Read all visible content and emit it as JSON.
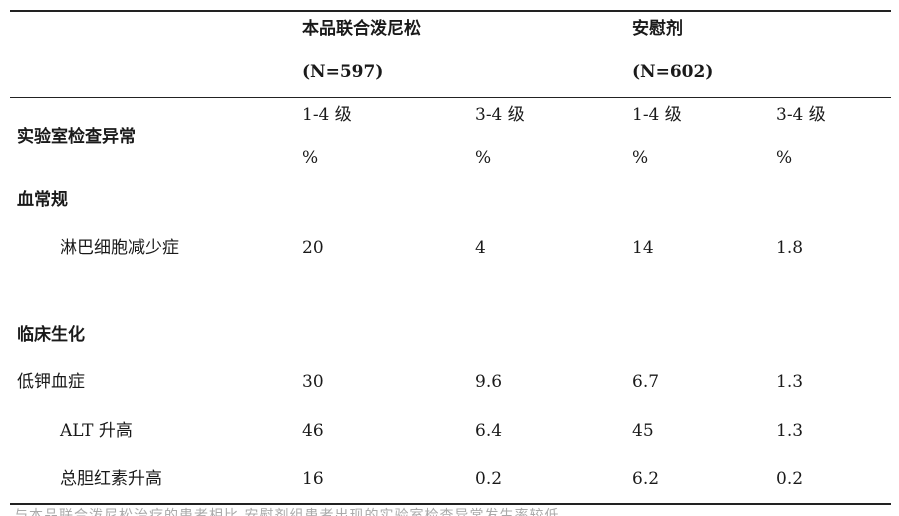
{
  "header": {
    "group1_name": "本品联合泼尼松",
    "group1_n": "(N=597)",
    "group2_name": "安慰剂",
    "group2_n": "(N=602)"
  },
  "subheader": {
    "category_label": "实验室检查异常",
    "grade_labels": [
      "1-4 级",
      "3-4 级",
      "1-4 级",
      "3-4 级"
    ],
    "unit": "%"
  },
  "sections": [
    {
      "title": "血常规",
      "rows": [
        {
          "label": "淋巴细胞减少症",
          "values": [
            "20",
            "4",
            "14",
            "1.8"
          ]
        }
      ]
    },
    {
      "title": "临床生化",
      "rows": [
        {
          "label": "低钾血症",
          "values": [
            "30",
            "9.6",
            "6.7",
            "1.3"
          ]
        },
        {
          "label": "ALT 升高",
          "values": [
            "46",
            "6.4",
            "45",
            "1.3"
          ]
        },
        {
          "label": "总胆红素升高",
          "values": [
            "16",
            "0.2",
            "6.2",
            "0.2"
          ]
        }
      ]
    }
  ],
  "footer_partial": "与本品联合泼尼松治疗的患者相比,安慰剂组患者出现的实验室检查异常发生率较低"
}
